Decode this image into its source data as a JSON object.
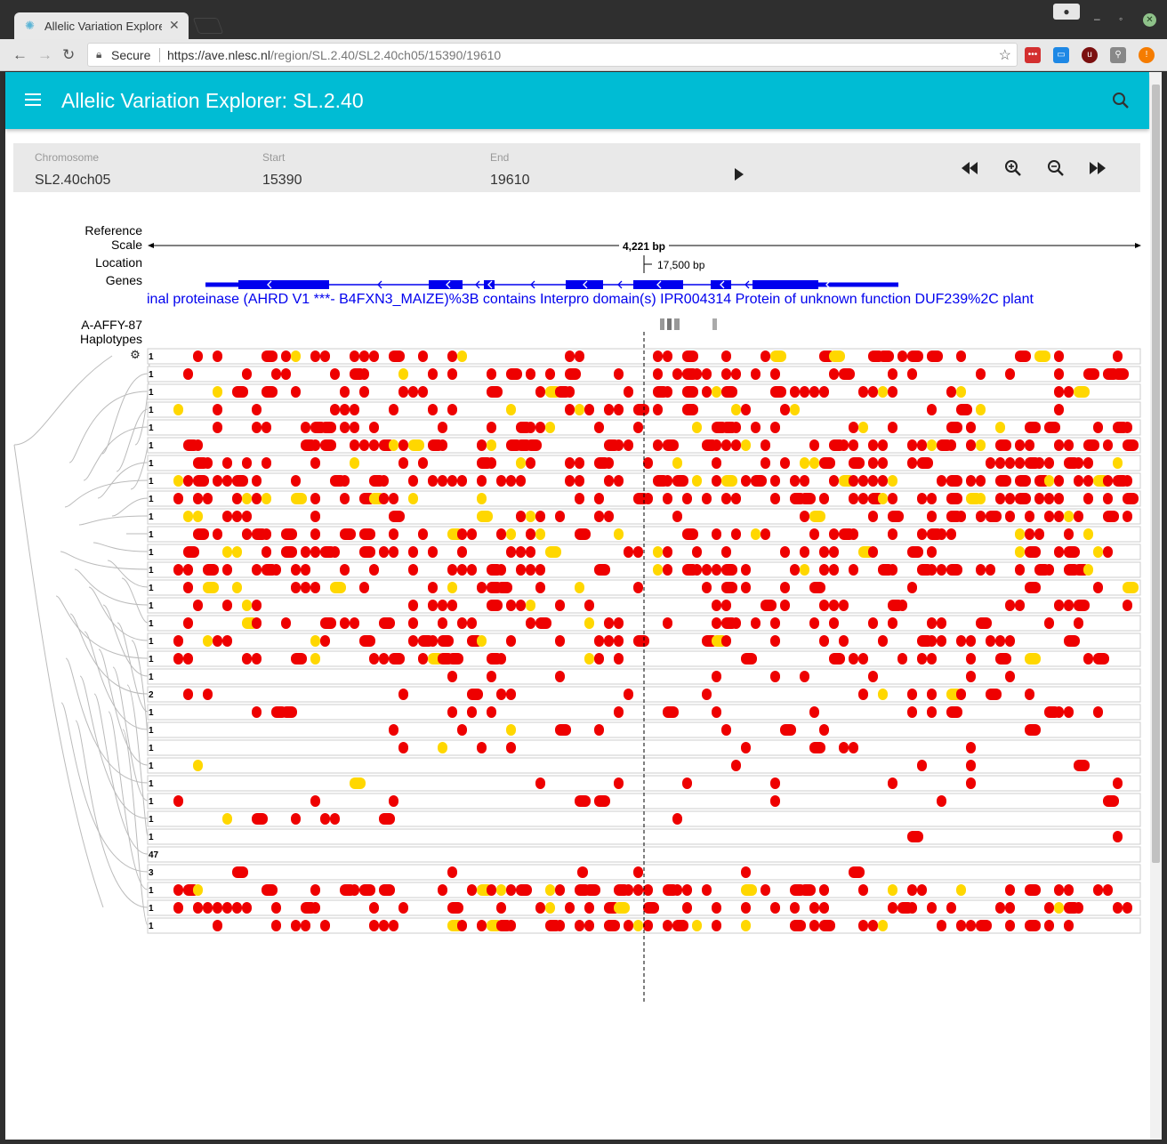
{
  "browser": {
    "tab_title": "Allelic Variation Explore",
    "secure_label": "Secure",
    "url_host": "https://ave.nlesc.nl",
    "url_path": "/region/SL.2.40/SL2.40ch05/15390/19610"
  },
  "app": {
    "title": "Allelic Variation Explorer: SL.2.40"
  },
  "region": {
    "chromosome_label": "Chromosome",
    "chromosome_value": "SL2.40ch05",
    "start_label": "Start",
    "start_value": "15390",
    "end_label": "End",
    "end_value": "19610"
  },
  "tracks": {
    "reference_label": "Reference",
    "scale_label": "Scale",
    "location_label": "Location",
    "genes_label": "Genes",
    "accession_label": "A-AFFY-87",
    "haplotypes_label": "Haplotypes",
    "scale_text": "4,221 bp",
    "location_text": "17,500 bp",
    "gene_descriptions": "inal proteinase (AHRD V1 ***- B4FXN3_MAIZE)%3B contains Interpro domain(s)  IPR004314  Protein of unknown function DUF239%2C plant"
  },
  "colors": {
    "variant_red": "#ee0000",
    "variant_yellow": "#ffd700",
    "gene_blue": "#0000ee",
    "appbar": "#00bcd4"
  },
  "haplotypes": [
    {
      "count": "1"
    },
    {
      "count": "1"
    },
    {
      "count": "1"
    },
    {
      "count": "1"
    },
    {
      "count": "1"
    },
    {
      "count": "1"
    },
    {
      "count": "1"
    },
    {
      "count": "1"
    },
    {
      "count": "1"
    },
    {
      "count": "1"
    },
    {
      "count": "1"
    },
    {
      "count": "1"
    },
    {
      "count": "1"
    },
    {
      "count": "1"
    },
    {
      "count": "1"
    },
    {
      "count": "1"
    },
    {
      "count": "1"
    },
    {
      "count": "1"
    },
    {
      "count": "1"
    },
    {
      "count": "2"
    },
    {
      "count": "1"
    },
    {
      "count": "1"
    },
    {
      "count": "1"
    },
    {
      "count": "1"
    },
    {
      "count": "1"
    },
    {
      "count": "1"
    },
    {
      "count": "1"
    },
    {
      "count": "1"
    },
    {
      "count": "47"
    },
    {
      "count": "3"
    },
    {
      "count": "1"
    },
    {
      "count": "1"
    },
    {
      "count": "1"
    }
  ]
}
